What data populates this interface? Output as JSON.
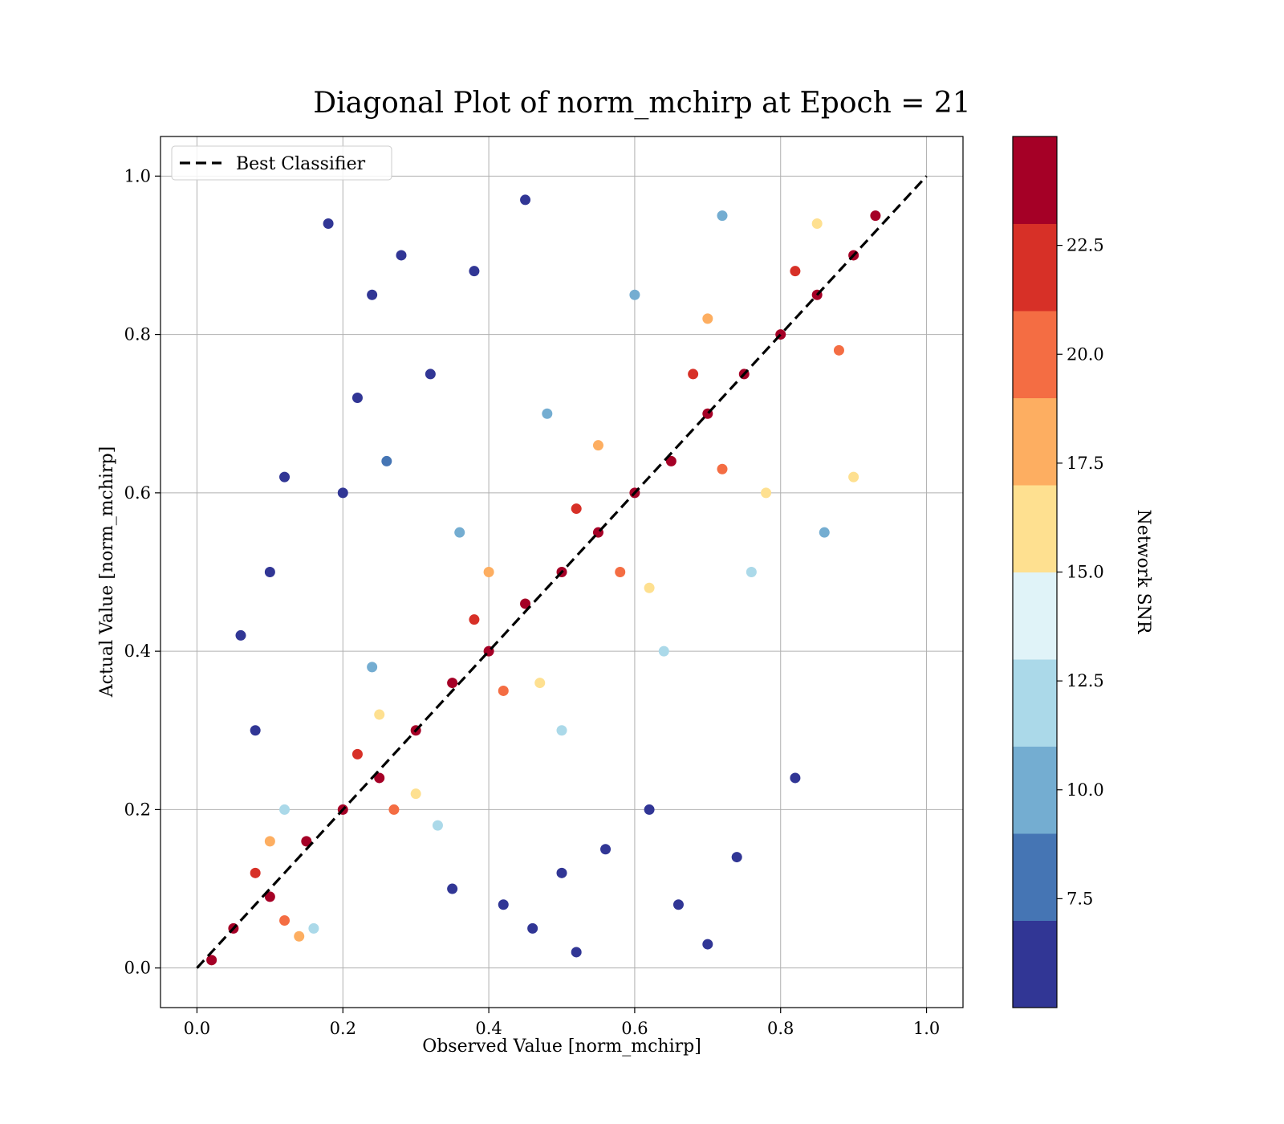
{
  "chart_data": {
    "type": "scatter",
    "title": "Diagonal Plot of norm_mchirp at Epoch = 21",
    "xlabel": "Observed Value [norm_mchirp]",
    "ylabel": "Actual Value [norm_mchirp]",
    "xlim": [
      -0.05,
      1.05
    ],
    "ylim": [
      -0.05,
      1.05
    ],
    "x_ticks": [
      "0.0",
      "0.2",
      "0.4",
      "0.6",
      "0.8",
      "1.0"
    ],
    "y_ticks": [
      "0.0",
      "0.2",
      "0.4",
      "0.6",
      "0.8",
      "1.0"
    ],
    "grid": true,
    "legend": {
      "placement": "top-left",
      "entries": [
        "Best Classifier"
      ]
    },
    "reference_line": {
      "name": "Best Classifier",
      "x": [
        0.0,
        1.0
      ],
      "y": [
        0.0,
        1.0
      ],
      "style": "dashed",
      "color": "#000000"
    },
    "colorbar": {
      "label": "Network SNR",
      "range": [
        5.0,
        25.0
      ],
      "ticks": [
        "7.5",
        "10.0",
        "12.5",
        "15.0",
        "17.5",
        "20.0",
        "22.5"
      ],
      "colors": [
        "#313695",
        "#4575b4",
        "#74add1",
        "#abd9e9",
        "#e0f3f8",
        "#fee090",
        "#fdae61",
        "#f46d43",
        "#d73027",
        "#a50026"
      ]
    },
    "points": [
      [
        0.02,
        0.01,
        24
      ],
      [
        0.05,
        0.05,
        24
      ],
      [
        0.1,
        0.09,
        23
      ],
      [
        0.15,
        0.16,
        24
      ],
      [
        0.2,
        0.2,
        24
      ],
      [
        0.25,
        0.24,
        24
      ],
      [
        0.3,
        0.3,
        23
      ],
      [
        0.35,
        0.36,
        24
      ],
      [
        0.4,
        0.4,
        24
      ],
      [
        0.45,
        0.46,
        24
      ],
      [
        0.5,
        0.5,
        23
      ],
      [
        0.55,
        0.55,
        24
      ],
      [
        0.6,
        0.6,
        24
      ],
      [
        0.65,
        0.64,
        24
      ],
      [
        0.7,
        0.7,
        23
      ],
      [
        0.75,
        0.75,
        24
      ],
      [
        0.8,
        0.8,
        24
      ],
      [
        0.85,
        0.85,
        24
      ],
      [
        0.9,
        0.9,
        23
      ],
      [
        0.93,
        0.95,
        24
      ],
      [
        0.08,
        0.12,
        21
      ],
      [
        0.12,
        0.06,
        20
      ],
      [
        0.22,
        0.27,
        21
      ],
      [
        0.27,
        0.2,
        20
      ],
      [
        0.38,
        0.44,
        21
      ],
      [
        0.42,
        0.35,
        20
      ],
      [
        0.52,
        0.58,
        21
      ],
      [
        0.58,
        0.5,
        20
      ],
      [
        0.68,
        0.75,
        21
      ],
      [
        0.72,
        0.63,
        20
      ],
      [
        0.82,
        0.88,
        21
      ],
      [
        0.88,
        0.78,
        20
      ],
      [
        0.1,
        0.16,
        17
      ],
      [
        0.14,
        0.04,
        17
      ],
      [
        0.25,
        0.32,
        16
      ],
      [
        0.3,
        0.22,
        16
      ],
      [
        0.4,
        0.5,
        17
      ],
      [
        0.47,
        0.36,
        16
      ],
      [
        0.55,
        0.66,
        17
      ],
      [
        0.62,
        0.48,
        16
      ],
      [
        0.7,
        0.82,
        17
      ],
      [
        0.78,
        0.6,
        16
      ],
      [
        0.85,
        0.94,
        16
      ],
      [
        0.9,
        0.62,
        16
      ],
      [
        0.12,
        0.2,
        11
      ],
      [
        0.16,
        0.05,
        11
      ],
      [
        0.24,
        0.38,
        10
      ],
      [
        0.33,
        0.18,
        11
      ],
      [
        0.36,
        0.55,
        10
      ],
      [
        0.5,
        0.3,
        11
      ],
      [
        0.48,
        0.7,
        10
      ],
      [
        0.64,
        0.4,
        11
      ],
      [
        0.6,
        0.85,
        10
      ],
      [
        0.76,
        0.5,
        11
      ],
      [
        0.72,
        0.95,
        10
      ],
      [
        0.86,
        0.55,
        10
      ],
      [
        0.18,
        0.94,
        6
      ],
      [
        0.2,
        0.6,
        6
      ],
      [
        0.22,
        0.72,
        6
      ],
      [
        0.24,
        0.85,
        6
      ],
      [
        0.28,
        0.9,
        6
      ],
      [
        0.12,
        0.62,
        6
      ],
      [
        0.26,
        0.64,
        7
      ],
      [
        0.32,
        0.75,
        6
      ],
      [
        0.38,
        0.88,
        6
      ],
      [
        0.45,
        0.97,
        6
      ],
      [
        0.35,
        0.1,
        6
      ],
      [
        0.42,
        0.08,
        6
      ],
      [
        0.5,
        0.12,
        6
      ],
      [
        0.56,
        0.15,
        6
      ],
      [
        0.62,
        0.2,
        6
      ],
      [
        0.66,
        0.08,
        6
      ],
      [
        0.74,
        0.14,
        6
      ],
      [
        0.7,
        0.03,
        6
      ],
      [
        0.82,
        0.24,
        6
      ],
      [
        0.46,
        0.05,
        6
      ],
      [
        0.52,
        0.02,
        6
      ],
      [
        0.08,
        0.3,
        6
      ],
      [
        0.06,
        0.42,
        6
      ],
      [
        0.1,
        0.5,
        6
      ]
    ]
  }
}
